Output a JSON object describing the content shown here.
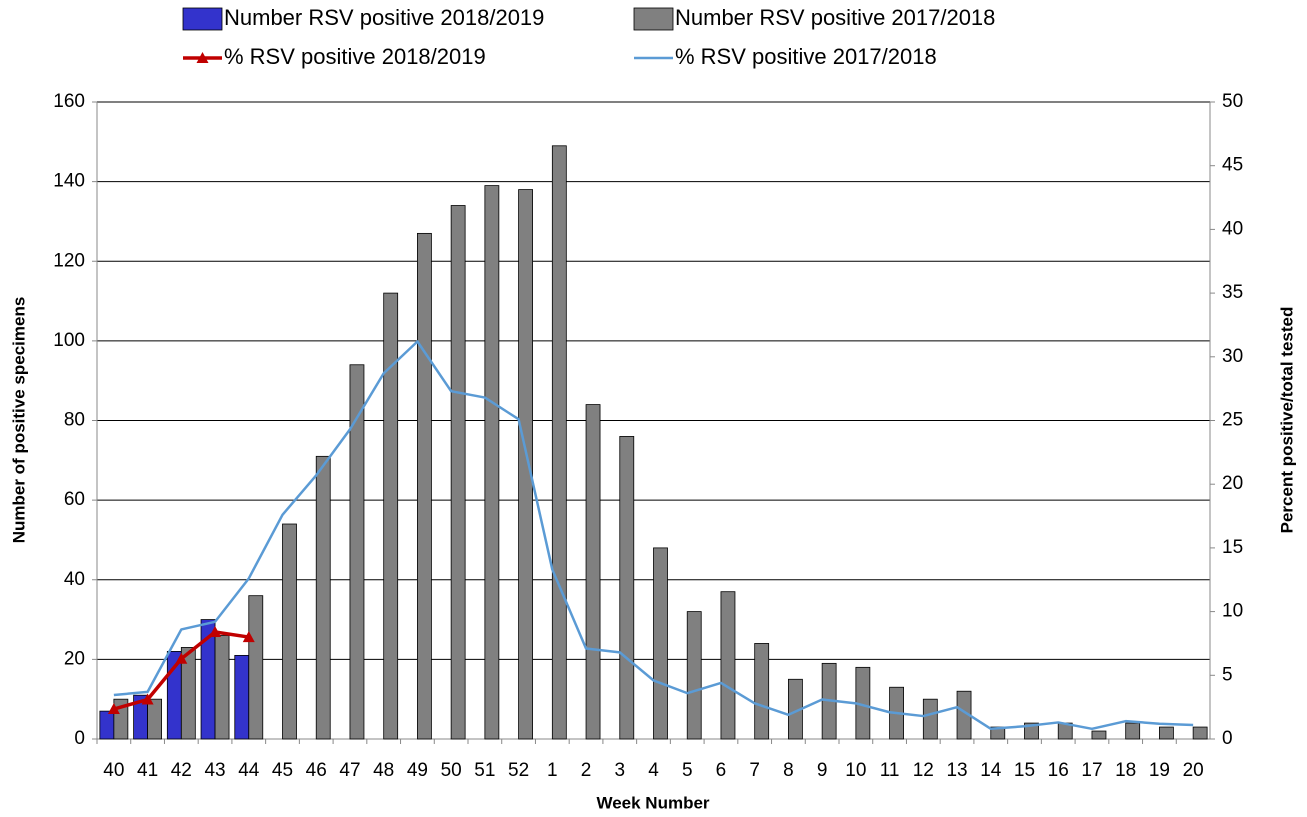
{
  "chart_data": {
    "type": "bar",
    "categories": [
      "40",
      "41",
      "42",
      "43",
      "44",
      "45",
      "46",
      "47",
      "48",
      "49",
      "50",
      "51",
      "52",
      "1",
      "2",
      "3",
      "4",
      "5",
      "6",
      "7",
      "8",
      "9",
      "10",
      "11",
      "12",
      "13",
      "14",
      "15",
      "16",
      "17",
      "18",
      "19",
      "20"
    ],
    "x_label": "Week Number",
    "y_label": "Number of positive specimens",
    "y2_label": "Percent positive/total tested",
    "ylim": [
      0,
      160
    ],
    "yticks": [
      0,
      20,
      40,
      60,
      80,
      100,
      120,
      140,
      160
    ],
    "y2lim": [
      0,
      50
    ],
    "y2ticks": [
      0,
      5,
      10,
      15,
      20,
      25,
      30,
      35,
      40,
      45,
      50
    ],
    "grid": true,
    "series": [
      {
        "name": "Number RSV positive 2018/2019",
        "type": "bar",
        "color": "#3333cc",
        "values": [
          7,
          11,
          22,
          30,
          21,
          null,
          null,
          null,
          null,
          null,
          null,
          null,
          null,
          null,
          null,
          null,
          null,
          null,
          null,
          null,
          null,
          null,
          null,
          null,
          null,
          null,
          null,
          null,
          null,
          null,
          null,
          null,
          null
        ]
      },
      {
        "name": "Number RSV positive 2017/2018",
        "type": "bar",
        "color": "#808080",
        "values": [
          10,
          10,
          23,
          26,
          36,
          54,
          71,
          94,
          112,
          127,
          134,
          139,
          138,
          149,
          84,
          76,
          48,
          32,
          37,
          24,
          15,
          19,
          18,
          13,
          10,
          12,
          3,
          4,
          4,
          2,
          4,
          3,
          3
        ]
      },
      {
        "name": "% RSV positive 2018/2019",
        "type": "line",
        "axis": "y2",
        "color": "#c00000",
        "marker": "triangle",
        "values": [
          2.35,
          3.1,
          6.3,
          8.4,
          8.0,
          null,
          null,
          null,
          null,
          null,
          null,
          null,
          null,
          null,
          null,
          null,
          null,
          null,
          null,
          null,
          null,
          null,
          null,
          null,
          null,
          null,
          null,
          null,
          null,
          null,
          null,
          null,
          null
        ]
      },
      {
        "name": "% RSV positive 2017/2018",
        "type": "line",
        "axis": "y2",
        "color": "#5b9bd5",
        "values": [
          3.45,
          3.7,
          8.6,
          9.2,
          12.6,
          17.6,
          20.7,
          24.3,
          28.7,
          31.2,
          27.3,
          26.8,
          25.1,
          13.3,
          7.1,
          6.8,
          4.6,
          3.6,
          4.4,
          2.8,
          1.9,
          3.1,
          2.8,
          2.1,
          1.8,
          2.5,
          0.8,
          1.0,
          1.3,
          0.8,
          1.4,
          1.2,
          1.1
        ]
      }
    ]
  }
}
